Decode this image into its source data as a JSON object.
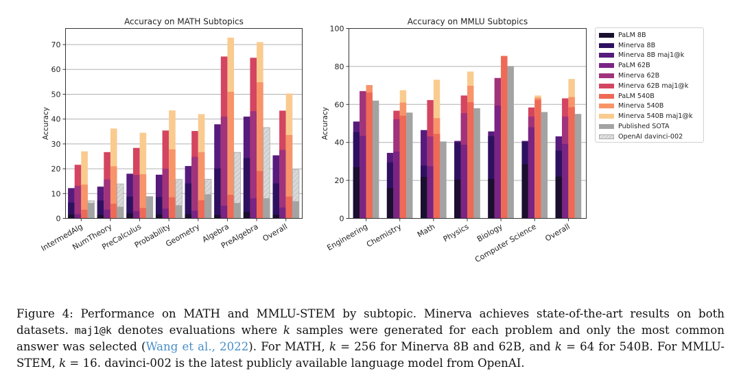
{
  "series_names": [
    "PaLM 8B",
    "Minerva 8B",
    "Minerva 8B maj1@k",
    "PaLM 62B",
    "Minerva 62B",
    "Minerva 62B maj1@k",
    "PaLM 540B",
    "Minerva 540B",
    "Minerva 540B maj1@k",
    "Published SOTA",
    "OpenAI davinci-002"
  ],
  "colors": {
    "PaLM 8B": "#1a0f2e",
    "Minerva 8B": "#2d1160",
    "Minerva 8B maj1@k": "#561b7c",
    "PaLM 62B": "#7a2483",
    "Minerva 62B": "#a0337b",
    "Minerva 62B maj1@k": "#d34560",
    "PaLM 540B": "#ee6a56",
    "Minerva 540B": "#f7946a",
    "Minerva 540B maj1@k": "#f9cb8f",
    "Published SOTA": "#a3a3a3",
    "OpenAI davinci-002": "#d6d6d6"
  },
  "legend": {
    "items": [
      "PaLM 8B",
      "Minerva 8B",
      "Minerva 8B maj1@k",
      "PaLM 62B",
      "Minerva 62B",
      "Minerva 62B maj1@k",
      "PaLM 540B",
      "Minerva 540B",
      "Minerva 540B maj1@k",
      "Published SOTA",
      "OpenAI davinci-002"
    ],
    "placement": "right"
  },
  "chart_data": [
    {
      "type": "bar",
      "title": "Accuracy on MATH Subtopics",
      "xlabel": "",
      "ylabel": "Accuracy",
      "ylim": [
        0,
        76.5
      ],
      "yticks": [
        0,
        10,
        20,
        30,
        40,
        50,
        60,
        70
      ],
      "grid": true,
      "categories": [
        "IntermedAlg",
        "NumTheory",
        "PreCalculus",
        "Probability",
        "Geometry",
        "Algebra",
        "PreAlgebra",
        "Overall"
      ],
      "series": [
        {
          "name": "PaLM 8B",
          "values": [
            1.5,
            1.4,
            2.0,
            1.6,
            1.7,
            1.4,
            2.6,
            1.5
          ]
        },
        {
          "name": "Minerva 8B",
          "values": [
            6.4,
            7.2,
            8.8,
            8.6,
            14.1,
            20.1,
            24.3,
            14.1
          ]
        },
        {
          "name": "Minerva 8B maj1@k",
          "values": [
            12.2,
            12.8,
            18.0,
            17.6,
            21.1,
            37.9,
            41.0,
            25.4
          ]
        },
        {
          "name": "PaLM 62B",
          "values": [
            1.7,
            3.5,
            2.9,
            3.9,
            3.1,
            5.1,
            8.1,
            4.4
          ]
        },
        {
          "name": "Minerva 62B",
          "values": [
            13.1,
            15.7,
            17.5,
            20.0,
            24.8,
            41.0,
            43.2,
            27.6
          ]
        },
        {
          "name": "Minerva 62B maj1@k",
          "values": [
            21.6,
            26.7,
            28.4,
            35.4,
            35.2,
            65.2,
            64.7,
            43.4
          ]
        },
        {
          "name": "PaLM 540B",
          "values": [
            3.5,
            5.9,
            4.2,
            8.5,
            7.3,
            9.5,
            19.1,
            8.8
          ]
        },
        {
          "name": "Minerva 540B",
          "values": [
            13.6,
            21.0,
            17.8,
            27.8,
            26.7,
            51.0,
            54.8,
            33.6
          ]
        },
        {
          "name": "Minerva 540B maj1@k",
          "values": [
            27.0,
            36.2,
            34.5,
            43.5,
            42.0,
            72.8,
            71.0,
            50.3
          ]
        },
        {
          "name": "Published SOTA",
          "values": [
            6.2,
            4.7,
            8.8,
            5.3,
            9.7,
            6.2,
            8.1,
            6.9
          ]
        },
        {
          "name": "OpenAI davinci-002",
          "values": [
            7.1,
            13.9,
            8.8,
            15.7,
            15.8,
            26.6,
            36.6,
            19.6
          ]
        }
      ]
    },
    {
      "type": "bar",
      "title": "Accuracy on MMLU Subtopics",
      "xlabel": "",
      "ylabel": "Accuracy",
      "ylim": [
        0,
        100
      ],
      "yticks": [
        0,
        20,
        40,
        60,
        80,
        100
      ],
      "grid": true,
      "categories": [
        "Engineering",
        "Chemistry",
        "Math",
        "Physics",
        "Biology",
        "Computer Science",
        "Overall"
      ],
      "series": [
        {
          "name": "PaLM 8B",
          "values": [
            27.0,
            16.0,
            21.8,
            20.5,
            20.8,
            28.5,
            22.0
          ]
        },
        {
          "name": "Minerva 8B",
          "values": [
            45.5,
            29.5,
            27.8,
            40.0,
            43.3,
            40.3,
            35.7
          ]
        },
        {
          "name": "Minerva 8B maj1@k",
          "values": [
            51.0,
            34.5,
            46.5,
            40.8,
            45.8,
            40.8,
            43.2
          ]
        },
        {
          "name": "PaLM 62B",
          "values": [
            43.5,
            35.2,
            27.5,
            38.8,
            59.4,
            48.0,
            39.2
          ]
        },
        {
          "name": "Minerva 62B",
          "values": [
            67.0,
            52.2,
            43.2,
            55.4,
            73.9,
            53.6,
            53.6
          ]
        },
        {
          "name": "Minerva 62B maj1@k",
          "values": [
            67.0,
            56.7,
            62.3,
            64.7,
            73.9,
            58.4,
            63.2
          ]
        },
        {
          "name": "PaLM 540B",
          "values": [
            66.3,
            54.1,
            44.5,
            61.2,
            85.5,
            62.5,
            58.5
          ]
        },
        {
          "name": "Minerva 540B",
          "values": [
            70.2,
            61.0,
            52.8,
            69.8,
            85.5,
            63.6,
            63.9
          ]
        },
        {
          "name": "Minerva 540B maj1@k",
          "values": [
            70.2,
            67.5,
            73.0,
            77.3,
            85.5,
            64.7,
            73.4
          ]
        },
        {
          "name": "Published SOTA",
          "values": [
            62.0,
            55.7,
            40.5,
            58.0,
            80.2,
            56.0,
            55.0
          ]
        }
      ]
    }
  ],
  "caption": {
    "label": "Figure 4:",
    "s1": " Performance on MATH and MMLU-STEM by subtopic. Minerva achieves state-of-the-art results on both datasets. ",
    "maj": "maj1@k",
    "s2": " denotes evaluations where ",
    "k": "k",
    "s3": " samples were generated for each problem and only the most common answer was selected (",
    "cite": "Wang et al., 2022",
    "s4": "). For MATH, ",
    "s5": " = 256 for Minerva 8B and 62B, and ",
    "s6": " = 64 for 540B. For MMLU-STEM, ",
    "s7": " = 16. davinci-002 is the latest publicly available language model from OpenAI."
  }
}
